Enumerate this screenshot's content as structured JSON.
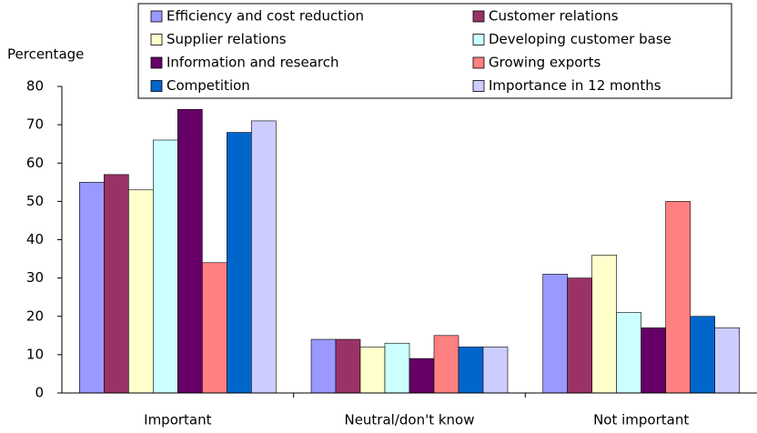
{
  "chart_data": {
    "type": "bar",
    "y_label": "Percentage",
    "categories": [
      "Important",
      "Neutral/don't know",
      "Not important"
    ],
    "series": [
      {
        "name": "Efficiency and cost reduction",
        "color": "#9999ff",
        "values": [
          55,
          14,
          31
        ]
      },
      {
        "name": "Customer relations",
        "color": "#993366",
        "values": [
          57,
          14,
          30
        ]
      },
      {
        "name": "Supplier relations",
        "color": "#ffffcc",
        "values": [
          53,
          12,
          36
        ]
      },
      {
        "name": "Developing customer base",
        "color": "#ccffff",
        "values": [
          66,
          13,
          21
        ]
      },
      {
        "name": "Information and research",
        "color": "#660066",
        "values": [
          74,
          9,
          17
        ]
      },
      {
        "name": "Growing exports",
        "color": "#ff8080",
        "values": [
          34,
          15,
          50
        ]
      },
      {
        "name": "Competition",
        "color": "#0066cc",
        "values": [
          68,
          12,
          20
        ]
      },
      {
        "name": "Importance in 12 months",
        "color": "#ccccff",
        "values": [
          71,
          12,
          17
        ]
      }
    ],
    "ylim": [
      0,
      80
    ],
    "yticks": [
      0,
      10,
      20,
      30,
      40,
      50,
      60,
      70,
      80
    ],
    "grid": false,
    "legend": "top"
  }
}
